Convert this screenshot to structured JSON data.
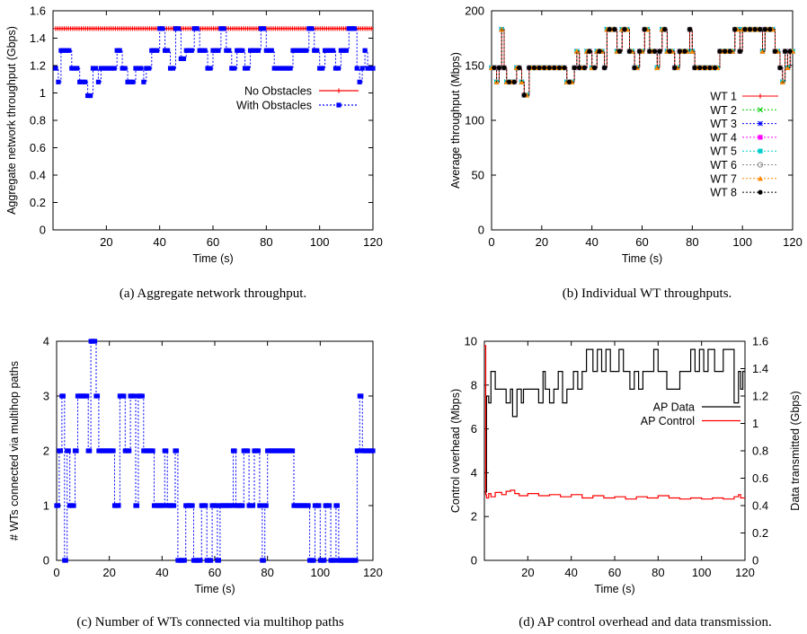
{
  "chart_data": [
    {
      "id": "a",
      "type": "line",
      "caption": "(a)  Aggregate network throughput.",
      "xlabel": "Time (s)",
      "ylabel": "Aggregate network throughput (Gbps)",
      "xlim": [
        0,
        120
      ],
      "ylim": [
        0,
        1.6
      ],
      "xticks": [
        20,
        40,
        60,
        80,
        100,
        120
      ],
      "yticks": [
        0,
        0.2,
        0.4,
        0.6,
        0.8,
        1,
        1.2,
        1.4,
        1.6
      ],
      "legend": "center-right",
      "series": [
        {
          "name": "No Obstacles",
          "color": "#ff0000",
          "marker": "plus",
          "steps": [
            [
              1,
              1.47
            ],
            [
              120,
              1.47
            ]
          ]
        },
        {
          "name": "With Obstacles",
          "color": "#0000ff",
          "marker": "square",
          "steps": [
            [
              1,
              1.18
            ],
            [
              2,
              1.08
            ],
            [
              3,
              1.31
            ],
            [
              7,
              1.18
            ],
            [
              10,
              1.08
            ],
            [
              13,
              0.98
            ],
            [
              15,
              1.18
            ],
            [
              17,
              1.08
            ],
            [
              18,
              1.18
            ],
            [
              20,
              1.18
            ],
            [
              24,
              1.31
            ],
            [
              26,
              1.18
            ],
            [
              28,
              1.08
            ],
            [
              31,
              1.18
            ],
            [
              34,
              1.08
            ],
            [
              35,
              1.18
            ],
            [
              37,
              1.31
            ],
            [
              40,
              1.47
            ],
            [
              42,
              1.31
            ],
            [
              44,
              1.18
            ],
            [
              46,
              1.47
            ],
            [
              48,
              1.25
            ],
            [
              50,
              1.31
            ],
            [
              53,
              1.47
            ],
            [
              55,
              1.31
            ],
            [
              58,
              1.18
            ],
            [
              60,
              1.31
            ],
            [
              63,
              1.47
            ],
            [
              65,
              1.31
            ],
            [
              67,
              1.18
            ],
            [
              69,
              1.31
            ],
            [
              72,
              1.18
            ],
            [
              74,
              1.31
            ],
            [
              78,
              1.47
            ],
            [
              80,
              1.31
            ],
            [
              83,
              1.18
            ],
            [
              90,
              1.31
            ],
            [
              96,
              1.47
            ],
            [
              98,
              1.31
            ],
            [
              100,
              1.18
            ],
            [
              102,
              1.31
            ],
            [
              106,
              1.18
            ],
            [
              108,
              1.31
            ],
            [
              111,
              1.47
            ],
            [
              114,
              1.18
            ],
            [
              115,
              1.08
            ],
            [
              116,
              1.18
            ],
            [
              117,
              1.31
            ],
            [
              118,
              1.18
            ],
            [
              120,
              1.18
            ]
          ]
        }
      ]
    },
    {
      "id": "b",
      "type": "line",
      "caption": "(b)  Individual WT throughputs.",
      "xlabel": "Time (s)",
      "ylabel": "Average throughput (Mbps)",
      "xlim": [
        0,
        120
      ],
      "ylim": [
        0,
        200
      ],
      "xticks": [
        0,
        20,
        40,
        60,
        80,
        100,
        120
      ],
      "yticks": [
        0,
        50,
        100,
        150,
        200
      ],
      "legend": "center-right",
      "series": [
        {
          "name": "WT 1",
          "color": "#ff0000",
          "marker": "plus"
        },
        {
          "name": "WT 2",
          "color": "#00cc00",
          "marker": "x"
        },
        {
          "name": "WT 3",
          "color": "#0000ff",
          "marker": "star"
        },
        {
          "name": "WT 4",
          "color": "#ff00ff",
          "marker": "square"
        },
        {
          "name": "WT 5",
          "color": "#00cccc",
          "marker": "fsquare"
        },
        {
          "name": "WT 6",
          "color": "#888888",
          "marker": "circle"
        },
        {
          "name": "WT 7",
          "color": "#ff8800",
          "marker": "triangle"
        },
        {
          "name": "WT 8",
          "color": "#000000",
          "marker": "dot"
        }
      ],
      "steps": [
        [
          0,
          148
        ],
        [
          2,
          135
        ],
        [
          3,
          148
        ],
        [
          4,
          183
        ],
        [
          5,
          148
        ],
        [
          6,
          135
        ],
        [
          10,
          148
        ],
        [
          12,
          135
        ],
        [
          13,
          123
        ],
        [
          15,
          148
        ],
        [
          19,
          148
        ],
        [
          23,
          148
        ],
        [
          27,
          148
        ],
        [
          30,
          135
        ],
        [
          33,
          148
        ],
        [
          34,
          163
        ],
        [
          35,
          148
        ],
        [
          38,
          163
        ],
        [
          40,
          148
        ],
        [
          42,
          163
        ],
        [
          45,
          148
        ],
        [
          46,
          183
        ],
        [
          50,
          163
        ],
        [
          52,
          183
        ],
        [
          55,
          163
        ],
        [
          57,
          148
        ],
        [
          59,
          163
        ],
        [
          61,
          183
        ],
        [
          63,
          163
        ],
        [
          66,
          148
        ],
        [
          67,
          163
        ],
        [
          68,
          183
        ],
        [
          70,
          163
        ],
        [
          73,
          148
        ],
        [
          75,
          163
        ],
        [
          79,
          183
        ],
        [
          80,
          163
        ],
        [
          81,
          148
        ],
        [
          91,
          163
        ],
        [
          97,
          183
        ],
        [
          99,
          163
        ],
        [
          100,
          183
        ],
        [
          108,
          163
        ],
        [
          109,
          183
        ],
        [
          113,
          163
        ],
        [
          115,
          148
        ],
        [
          116,
          135
        ],
        [
          117,
          163
        ],
        [
          118,
          148
        ],
        [
          119,
          163
        ],
        [
          120,
          163
        ]
      ]
    },
    {
      "id": "c",
      "type": "line",
      "caption": "(c)  Number of WTs connected via multihop paths",
      "xlabel": "Time (s)",
      "ylabel": "# WTs connected via multihop paths",
      "xlim": [
        0,
        120
      ],
      "ylim": [
        0,
        4
      ],
      "xticks": [
        0,
        20,
        40,
        60,
        80,
        100,
        120
      ],
      "yticks": [
        0,
        1,
        2,
        3,
        4
      ],
      "series": [
        {
          "name": "",
          "color": "#0000ff",
          "marker": "square",
          "steps": [
            [
              0,
              1
            ],
            [
              1,
              2
            ],
            [
              2,
              3
            ],
            [
              3,
              0
            ],
            [
              4,
              2
            ],
            [
              5,
              1
            ],
            [
              7,
              2
            ],
            [
              8,
              3
            ],
            [
              12,
              2
            ],
            [
              13,
              4
            ],
            [
              15,
              3
            ],
            [
              16,
              2
            ],
            [
              22,
              1
            ],
            [
              24,
              3
            ],
            [
              26,
              2
            ],
            [
              28,
              3
            ],
            [
              30,
              1
            ],
            [
              31,
              3
            ],
            [
              33,
              2
            ],
            [
              37,
              1
            ],
            [
              41,
              2
            ],
            [
              42,
              1
            ],
            [
              45,
              2
            ],
            [
              46,
              0
            ],
            [
              49,
              1
            ],
            [
              52,
              0
            ],
            [
              55,
              1
            ],
            [
              57,
              0
            ],
            [
              59,
              1
            ],
            [
              61,
              0
            ],
            [
              62,
              1
            ],
            [
              67,
              2
            ],
            [
              68,
              1
            ],
            [
              71,
              2
            ],
            [
              73,
              1
            ],
            [
              75,
              2
            ],
            [
              77,
              1
            ],
            [
              78,
              0
            ],
            [
              79,
              1
            ],
            [
              80,
              2
            ],
            [
              90,
              1
            ],
            [
              96,
              0
            ],
            [
              98,
              1
            ],
            [
              100,
              0
            ],
            [
              102,
              1
            ],
            [
              104,
              0
            ],
            [
              106,
              1
            ],
            [
              107,
              0
            ],
            [
              114,
              2
            ],
            [
              115,
              3
            ],
            [
              116,
              2
            ],
            [
              120,
              2
            ]
          ]
        }
      ]
    },
    {
      "id": "d",
      "type": "line",
      "caption": "(d)  AP control overhead and data transmission.",
      "xlabel": "Time (s)",
      "ylabel": "Control overhead (Mbps)",
      "y2label": "Data transmitted (Gbps)",
      "xlim": [
        0,
        120
      ],
      "ylim": [
        0,
        10
      ],
      "y2lim": [
        0,
        1.6
      ],
      "xticks": [
        20,
        40,
        60,
        80,
        100,
        120
      ],
      "yticks": [
        0,
        2,
        4,
        6,
        8,
        10
      ],
      "y2ticks": [
        0,
        0.2,
        0.4,
        0.6,
        0.8,
        1,
        1.2,
        1.4,
        1.6
      ],
      "legend": "top-right",
      "series": [
        {
          "name": "AP Data",
          "color": "#000000",
          "axis": "y2",
          "steps": [
            [
              0,
              0.5
            ],
            [
              1,
              1.2
            ],
            [
              2,
              1.15
            ],
            [
              3,
              1.38
            ],
            [
              5,
              1.25
            ],
            [
              8,
              1.25
            ],
            [
              10,
              1.15
            ],
            [
              12,
              1.25
            ],
            [
              13,
              1.05
            ],
            [
              15,
              1.25
            ],
            [
              17,
              1.15
            ],
            [
              18,
              1.25
            ],
            [
              20,
              1.25
            ],
            [
              23,
              1.25
            ],
            [
              25,
              1.15
            ],
            [
              27,
              1.38
            ],
            [
              28,
              1.25
            ],
            [
              30,
              1.15
            ],
            [
              32,
              1.25
            ],
            [
              34,
              1.38
            ],
            [
              36,
              1.15
            ],
            [
              38,
              1.25
            ],
            [
              41,
              1.38
            ],
            [
              43,
              1.25
            ],
            [
              45,
              1.38
            ],
            [
              47,
              1.54
            ],
            [
              50,
              1.38
            ],
            [
              52,
              1.54
            ],
            [
              54,
              1.38
            ],
            [
              56,
              1.54
            ],
            [
              58,
              1.38
            ],
            [
              62,
              1.54
            ],
            [
              64,
              1.38
            ],
            [
              67,
              1.25
            ],
            [
              69,
              1.38
            ],
            [
              71,
              1.25
            ],
            [
              73,
              1.38
            ],
            [
              78,
              1.54
            ],
            [
              80,
              1.38
            ],
            [
              84,
              1.25
            ],
            [
              90,
              1.38
            ],
            [
              95,
              1.54
            ],
            [
              97,
              1.38
            ],
            [
              99,
              1.54
            ],
            [
              101,
              1.38
            ],
            [
              103,
              1.54
            ],
            [
              106,
              1.38
            ],
            [
              110,
              1.54
            ],
            [
              115,
              1.15
            ],
            [
              117,
              1.38
            ],
            [
              118,
              1.25
            ],
            [
              119,
              1.38
            ],
            [
              120,
              1.38
            ]
          ]
        },
        {
          "name": "AP Control",
          "color": "#ff0000",
          "axis": "y",
          "steps": [
            [
              0,
              9.8
            ],
            [
              0.6,
              3.0
            ],
            [
              1,
              2.85
            ],
            [
              2,
              3.05
            ],
            [
              3,
              2.9
            ],
            [
              5,
              3.1
            ],
            [
              8,
              3.0
            ],
            [
              10,
              3.15
            ],
            [
              12,
              3.2
            ],
            [
              14,
              3.05
            ],
            [
              16,
              2.95
            ],
            [
              20,
              3.05
            ],
            [
              25,
              2.95
            ],
            [
              30,
              3.0
            ],
            [
              35,
              2.9
            ],
            [
              40,
              3.0
            ],
            [
              45,
              2.85
            ],
            [
              50,
              2.95
            ],
            [
              55,
              2.85
            ],
            [
              60,
              2.9
            ],
            [
              65,
              2.8
            ],
            [
              70,
              2.9
            ],
            [
              75,
              2.85
            ],
            [
              80,
              2.95
            ],
            [
              85,
              2.85
            ],
            [
              90,
              2.8
            ],
            [
              95,
              2.85
            ],
            [
              100,
              2.8
            ],
            [
              105,
              2.85
            ],
            [
              110,
              2.8
            ],
            [
              115,
              2.9
            ],
            [
              117,
              3.0
            ],
            [
              118,
              2.85
            ],
            [
              120,
              2.85
            ]
          ]
        }
      ]
    }
  ]
}
